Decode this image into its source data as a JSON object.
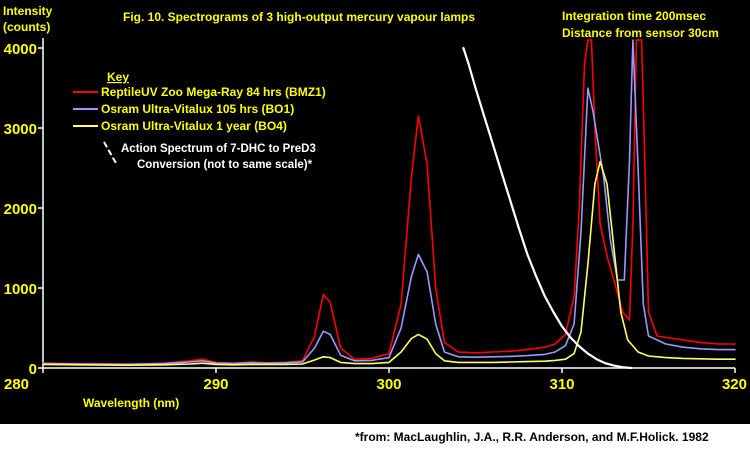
{
  "chart_data": {
    "type": "line",
    "title": "Fig. 10. Spectrograms of 3 high-output mercury vapour lamps",
    "ylabel_line1": "Intensity",
    "ylabel_line2": "(counts)",
    "xlabel": "Wavelength (nm)",
    "xlim": [
      280,
      320
    ],
    "ylim": [
      0,
      4000
    ],
    "x_ticks": [
      280,
      290,
      300,
      310,
      320
    ],
    "y_ticks": [
      0,
      1000,
      2000,
      3000,
      4000
    ],
    "x_tick_labels": [
      "280",
      "290",
      "300",
      "310",
      "320"
    ],
    "y_tick_labels": [
      "0",
      "1000",
      "2000",
      "3000",
      "4000"
    ],
    "info_line1": "Integration time 200msec",
    "info_line2": "Distance from sensor 30cm",
    "legend_title": "Key",
    "legend_placement": "top-left",
    "background": "#000000",
    "series": [
      {
        "name": "ReptileUV Zoo Mega-Ray 84 hrs (BMZ1)",
        "color": "#ff0000",
        "points": [
          [
            280,
            60
          ],
          [
            282,
            55
          ],
          [
            285,
            50
          ],
          [
            287,
            60
          ],
          [
            288.5,
            90
          ],
          [
            289.2,
            110
          ],
          [
            290,
            70
          ],
          [
            291,
            60
          ],
          [
            292,
            75
          ],
          [
            293,
            65
          ],
          [
            294,
            70
          ],
          [
            295,
            90
          ],
          [
            295.7,
            400
          ],
          [
            296.2,
            920
          ],
          [
            296.6,
            820
          ],
          [
            297.2,
            250
          ],
          [
            298,
            110
          ],
          [
            299,
            120
          ],
          [
            300,
            180
          ],
          [
            300.7,
            800
          ],
          [
            301.3,
            2400
          ],
          [
            301.7,
            3150
          ],
          [
            302.2,
            2550
          ],
          [
            302.7,
            1000
          ],
          [
            303.2,
            320
          ],
          [
            304,
            200
          ],
          [
            305,
            190
          ],
          [
            306,
            200
          ],
          [
            307,
            210
          ],
          [
            308,
            230
          ],
          [
            309,
            260
          ],
          [
            309.6,
            300
          ],
          [
            310.2,
            420
          ],
          [
            310.7,
            900
          ],
          [
            311,
            2000
          ],
          [
            311.3,
            3800
          ],
          [
            311.5,
            4100
          ],
          [
            311.7,
            4100
          ],
          [
            311.9,
            3000
          ],
          [
            312.2,
            1800
          ],
          [
            312.6,
            1400
          ],
          [
            313,
            1100
          ],
          [
            313.5,
            700
          ],
          [
            313.9,
            600
          ],
          [
            314.1,
            1800
          ],
          [
            314.3,
            4100
          ],
          [
            314.6,
            4100
          ],
          [
            314.8,
            2500
          ],
          [
            315,
            700
          ],
          [
            315.5,
            400
          ],
          [
            317,
            350
          ],
          [
            318,
            320
          ],
          [
            319,
            300
          ],
          [
            320,
            300
          ]
        ]
      },
      {
        "name": "Osram Ultra-Vitalux  105 hrs (BO1)",
        "color": "#9999ff",
        "points": [
          [
            280,
            55
          ],
          [
            282,
            50
          ],
          [
            285,
            45
          ],
          [
            287,
            55
          ],
          [
            288.5,
            75
          ],
          [
            289.2,
            90
          ],
          [
            290,
            60
          ],
          [
            291,
            55
          ],
          [
            292,
            65
          ],
          [
            293,
            60
          ],
          [
            294,
            65
          ],
          [
            295,
            75
          ],
          [
            295.7,
            250
          ],
          [
            296.2,
            460
          ],
          [
            296.6,
            420
          ],
          [
            297.2,
            160
          ],
          [
            298,
            90
          ],
          [
            299,
            95
          ],
          [
            300,
            130
          ],
          [
            300.7,
            500
          ],
          [
            301.3,
            1150
          ],
          [
            301.7,
            1420
          ],
          [
            302.2,
            1200
          ],
          [
            302.7,
            550
          ],
          [
            303.2,
            200
          ],
          [
            304,
            140
          ],
          [
            305,
            135
          ],
          [
            306,
            140
          ],
          [
            307,
            145
          ],
          [
            308,
            155
          ],
          [
            309,
            170
          ],
          [
            309.6,
            200
          ],
          [
            310.2,
            280
          ],
          [
            310.7,
            550
          ],
          [
            311.1,
            1700
          ],
          [
            311.5,
            3500
          ],
          [
            311.8,
            3200
          ],
          [
            312.1,
            2800
          ],
          [
            312.4,
            2400
          ],
          [
            312.8,
            1600
          ],
          [
            313.2,
            1100
          ],
          [
            313.6,
            1100
          ],
          [
            313.9,
            2600
          ],
          [
            314.1,
            4100
          ],
          [
            314.4,
            2500
          ],
          [
            314.7,
            800
          ],
          [
            315,
            400
          ],
          [
            316,
            300
          ],
          [
            317,
            260
          ],
          [
            318,
            240
          ],
          [
            319,
            230
          ],
          [
            320,
            230
          ]
        ]
      },
      {
        "name": "Osram Ultra-Vitalux 1 year (BO4)",
        "color": "#ffff66",
        "points": [
          [
            280,
            45
          ],
          [
            282,
            40
          ],
          [
            285,
            35
          ],
          [
            287,
            40
          ],
          [
            288.5,
            50
          ],
          [
            289.2,
            60
          ],
          [
            290,
            45
          ],
          [
            291,
            40
          ],
          [
            292,
            45
          ],
          [
            293,
            45
          ],
          [
            294,
            45
          ],
          [
            295,
            50
          ],
          [
            295.7,
            100
          ],
          [
            296.2,
            140
          ],
          [
            296.6,
            130
          ],
          [
            297.2,
            70
          ],
          [
            298,
            55
          ],
          [
            299,
            55
          ],
          [
            300,
            70
          ],
          [
            300.7,
            200
          ],
          [
            301.3,
            370
          ],
          [
            301.7,
            420
          ],
          [
            302.2,
            360
          ],
          [
            302.7,
            180
          ],
          [
            303.2,
            90
          ],
          [
            304,
            70
          ],
          [
            305,
            70
          ],
          [
            306,
            70
          ],
          [
            307,
            75
          ],
          [
            308,
            80
          ],
          [
            309,
            85
          ],
          [
            309.6,
            95
          ],
          [
            310.2,
            110
          ],
          [
            310.7,
            180
          ],
          [
            311.1,
            450
          ],
          [
            311.5,
            1300
          ],
          [
            311.9,
            2300
          ],
          [
            312.2,
            2580
          ],
          [
            312.6,
            2300
          ],
          [
            313,
            1500
          ],
          [
            313.4,
            700
          ],
          [
            313.8,
            350
          ],
          [
            314.4,
            200
          ],
          [
            315,
            150
          ],
          [
            316,
            130
          ],
          [
            317,
            120
          ],
          [
            318,
            115
          ],
          [
            319,
            110
          ],
          [
            320,
            110
          ]
        ]
      },
      {
        "name": "Action Spectrum of 7-DHC to PreD3 Conversion (not to same scale)*",
        "color": "#ffffff",
        "style": "dashed-legend",
        "points": [
          [
            304.3,
            4000
          ],
          [
            304.6,
            3800
          ],
          [
            305,
            3500
          ],
          [
            305.5,
            3150
          ],
          [
            306,
            2800
          ],
          [
            306.5,
            2450
          ],
          [
            307,
            2100
          ],
          [
            307.5,
            1750
          ],
          [
            308,
            1420
          ],
          [
            308.5,
            1150
          ],
          [
            309,
            900
          ],
          [
            309.5,
            700
          ],
          [
            310,
            520
          ],
          [
            310.5,
            380
          ],
          [
            311,
            270
          ],
          [
            311.5,
            180
          ],
          [
            312,
            110
          ],
          [
            312.5,
            60
          ],
          [
            313,
            30
          ],
          [
            313.5,
            10
          ],
          [
            314,
            0
          ]
        ]
      }
    ],
    "annotation_lines": [
      "Action Spectrum of 7-DHC to PreD3",
      "Conversion (not to same scale)*"
    ]
  },
  "citation": "*from: MacLaughlin, J.A., R.R. Anderson, and M.F.Holick. 1982"
}
